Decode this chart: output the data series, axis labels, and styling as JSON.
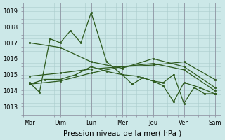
{
  "background_color": "#cce8e8",
  "grid_color": "#aacccc",
  "line_color": "#2d5a1e",
  "x_labels": [
    "Mar",
    "Dim",
    "Lun",
    "Mer",
    "Jeu",
    "Ven",
    "Sam"
  ],
  "x_tick_pos": [
    0,
    1,
    2,
    3,
    4,
    5,
    6
  ],
  "xlabel": "Pression niveau de la mer( hPa )",
  "ylim": [
    1012.5,
    1019.5
  ],
  "yticks": [
    1013,
    1014,
    1015,
    1016,
    1017,
    1018,
    1019
  ],
  "line1_x": [
    0,
    0.33,
    0.67,
    1.0,
    1.33,
    1.67,
    2.0,
    2.5,
    3.0,
    3.5,
    4.0,
    4.33,
    4.67,
    5.0,
    5.33,
    5.67,
    6.0
  ],
  "line1_y": [
    1014.5,
    1013.9,
    1017.25,
    1017.0,
    1017.75,
    1017.0,
    1018.9,
    1015.8,
    1015.0,
    1014.9,
    1014.6,
    1014.5,
    1015.0,
    1013.2,
    1014.2,
    1013.8,
    1013.8
  ],
  "line2_x": [
    0,
    0.5,
    1.0,
    1.5,
    2.0,
    2.5,
    3.0,
    3.33,
    3.67,
    4.0,
    4.33,
    4.67,
    5.0,
    5.5,
    6.0
  ],
  "line2_y": [
    1014.4,
    1014.7,
    1014.7,
    1015.0,
    1015.5,
    1015.2,
    1015.0,
    1014.4,
    1014.8,
    1014.6,
    1014.3,
    1013.3,
    1014.5,
    1014.2,
    1013.8
  ],
  "line3_x": [
    0,
    1.0,
    2.0,
    3.0,
    4.0,
    5.0,
    6.0
  ],
  "line3_y": [
    1017.0,
    1016.7,
    1015.8,
    1015.4,
    1016.0,
    1015.5,
    1014.2
  ],
  "line4_x": [
    0,
    1.0,
    2.0,
    3.0,
    4.0,
    5.0,
    6.0
  ],
  "line4_y": [
    1014.9,
    1015.1,
    1015.35,
    1015.5,
    1015.6,
    1015.8,
    1014.7
  ],
  "line5_x": [
    0,
    1.0,
    2.0,
    3.0,
    4.0,
    5.0,
    6.0
  ],
  "line5_y": [
    1014.4,
    1014.6,
    1015.1,
    1015.5,
    1015.7,
    1015.3,
    1014.0
  ],
  "tick_fontsize": 6,
  "label_fontsize": 7.5,
  "xlim": [
    -0.2,
    6.2
  ]
}
